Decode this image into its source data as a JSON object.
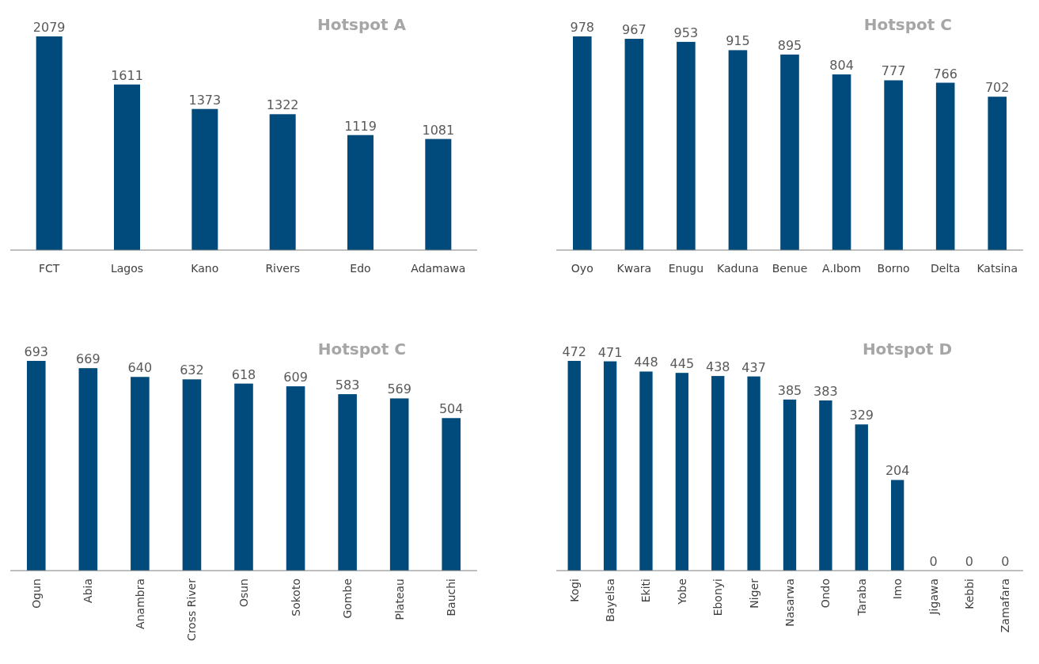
{
  "chart_data": [
    {
      "type": "bar",
      "title": "Hotspot A",
      "categories": [
        "FCT",
        "Lagos",
        "Kano",
        "Rivers",
        "Edo",
        "Adamawa"
      ],
      "values": [
        2079,
        1611,
        1373,
        1322,
        1119,
        1081
      ],
      "color": "#004b7c",
      "data_labels": true
    },
    {
      "type": "bar",
      "title": "Hotspot C",
      "categories": [
        "Oyo",
        "Kwara",
        "Enugu",
        "Kaduna",
        "Benue",
        "A.Ibom",
        "Borno",
        "Delta",
        "Katsina"
      ],
      "values": [
        978,
        967,
        953,
        915,
        895,
        804,
        777,
        766,
        702
      ],
      "color": "#004b7c",
      "data_labels": true
    },
    {
      "type": "bar",
      "title": "Hotspot C",
      "categories": [
        "Ogun",
        "Abia",
        "Anambra",
        "Cross River",
        "Osun",
        "Sokoto",
        "Gombe",
        "Plateau",
        "Bauchi"
      ],
      "values": [
        693,
        669,
        640,
        632,
        618,
        609,
        583,
        569,
        504
      ],
      "color": "#004b7c",
      "data_labels": true
    },
    {
      "type": "bar",
      "title": "Hotspot D",
      "categories": [
        "Kogi",
        "Bayelsa",
        "Ekiti",
        "Yobe",
        "Ebonyi",
        "Niger",
        "Nasarwa",
        "Ondo",
        "Taraba",
        "Imo",
        "Jigawa",
        "Kebbi",
        "Zamafara"
      ],
      "values": [
        472,
        471,
        448,
        445,
        438,
        437,
        385,
        383,
        329,
        204,
        0,
        0,
        0
      ],
      "color": "#004b7c",
      "data_labels": true
    }
  ]
}
